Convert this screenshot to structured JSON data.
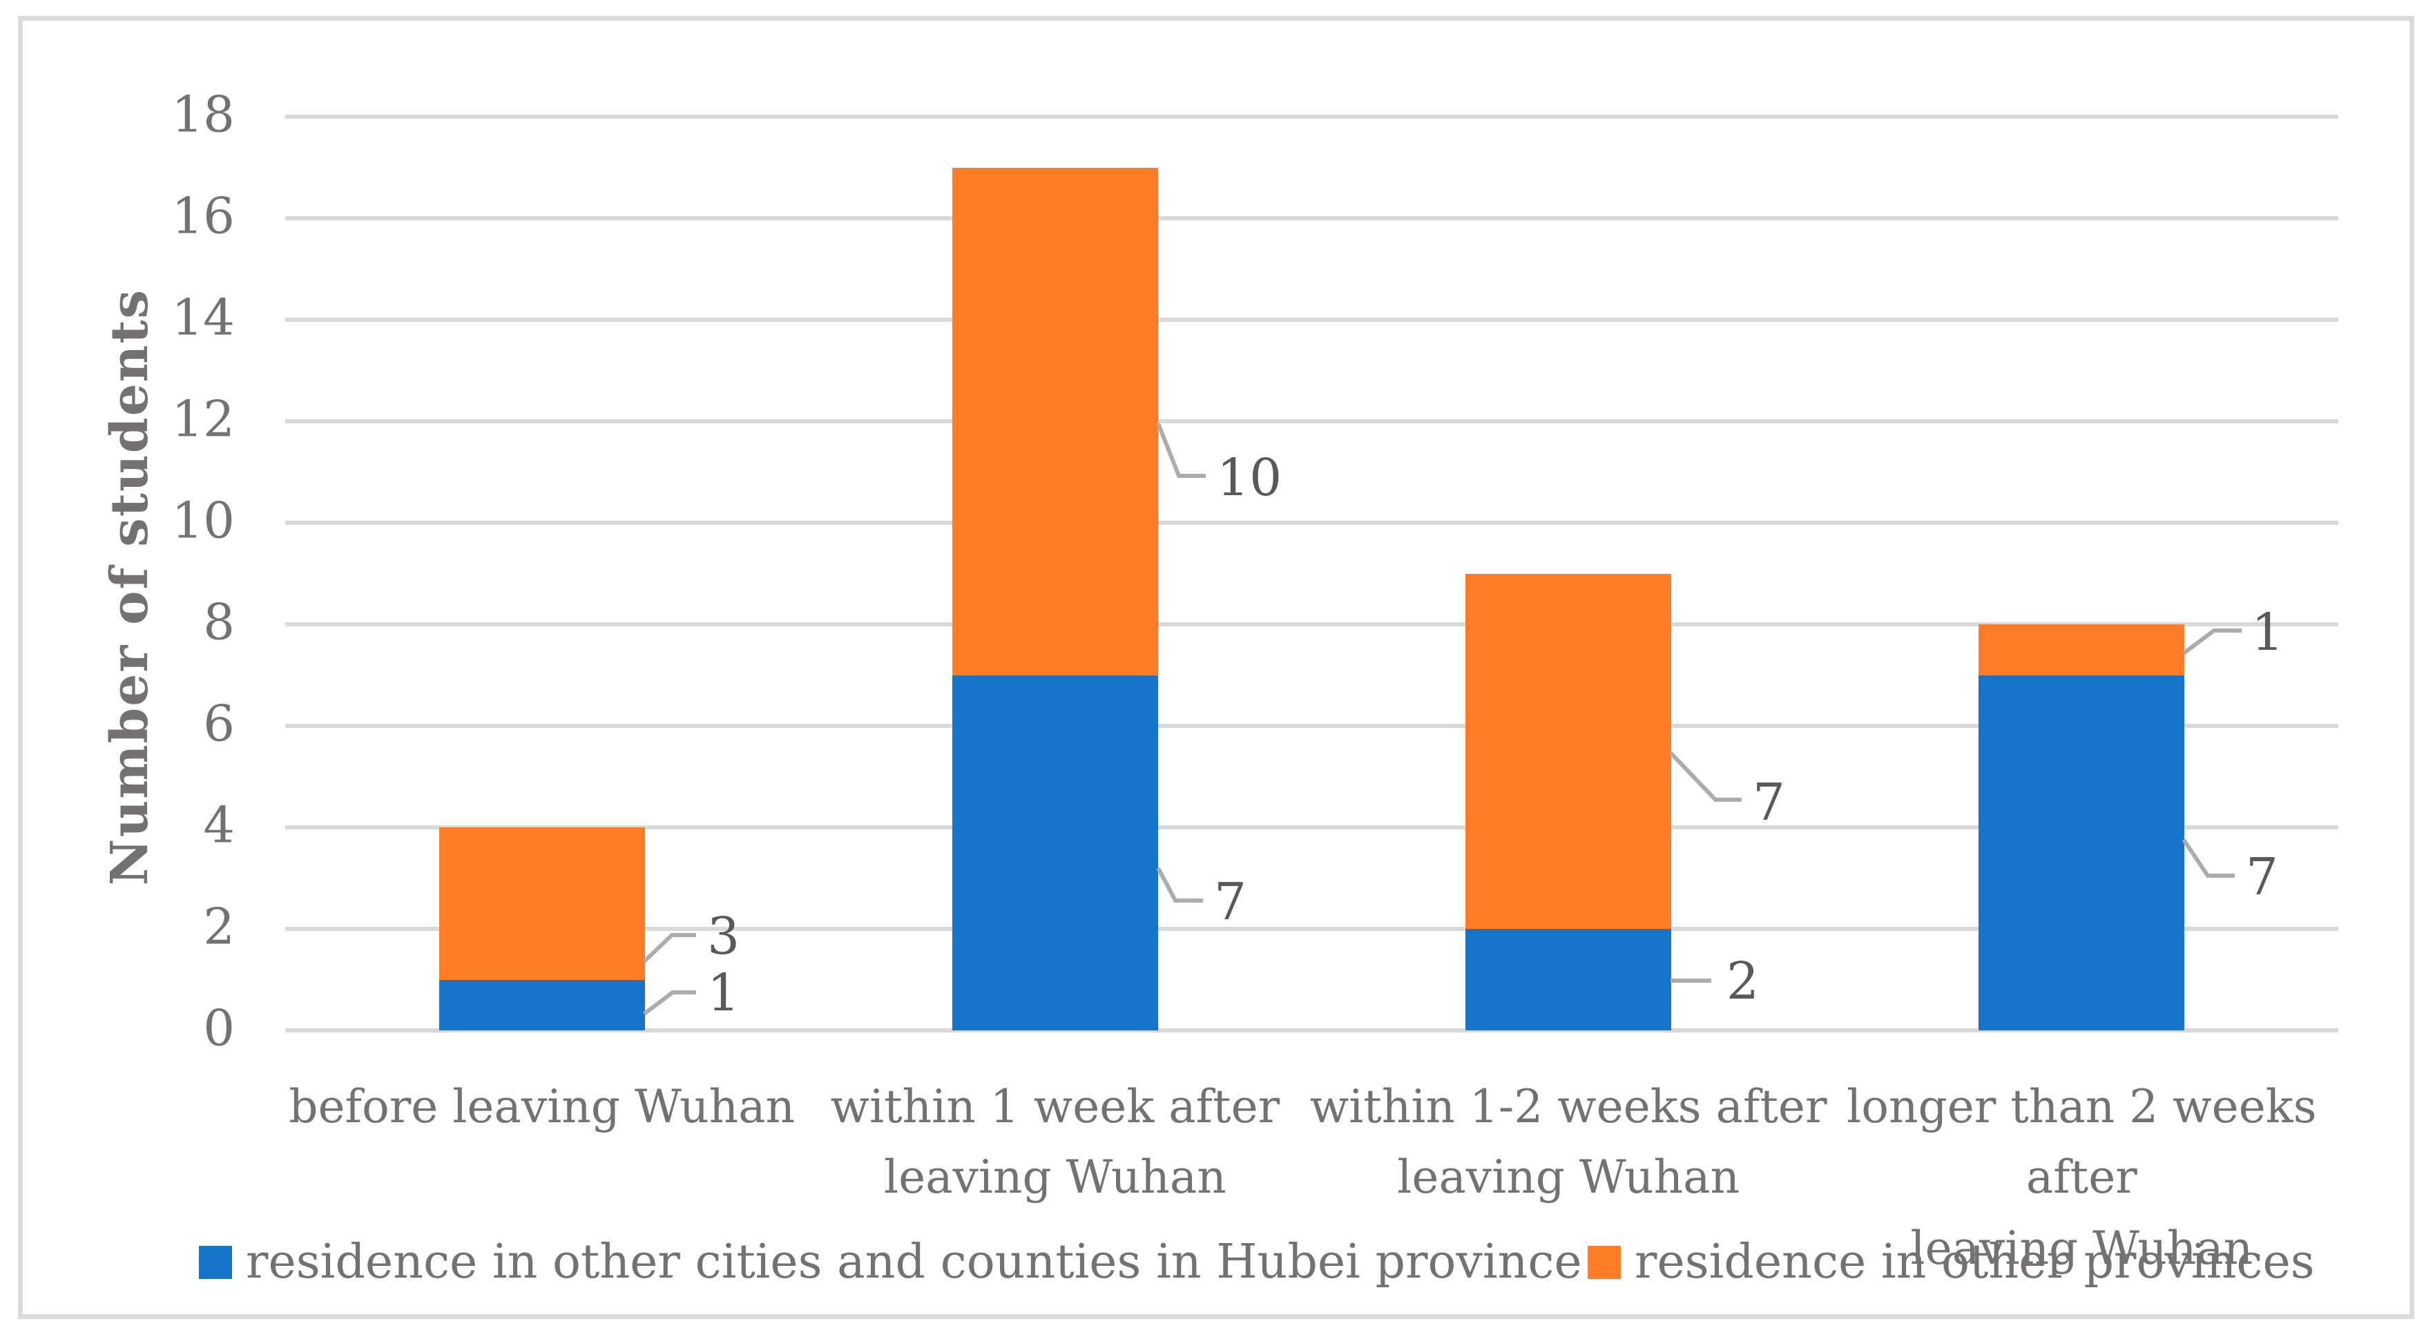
{
  "figure": {
    "background": "#ffffff",
    "border_color": "#dbdbdb"
  },
  "chart_data": {
    "type": "bar",
    "stacked": true,
    "title": "",
    "xlabel": "",
    "ylabel": "Number of students",
    "ylim": [
      0,
      18
    ],
    "ytick_step": 2,
    "yticks": [
      0,
      2,
      4,
      6,
      8,
      10,
      12,
      14,
      16,
      18
    ],
    "grid": "horizontal",
    "gridline_color": "#d9d9d9",
    "legend_position": "bottom",
    "text_color": "#767171",
    "data_label_color": "#595959",
    "leader_line_color": "#acacac",
    "categories": [
      "before leaving Wuhan",
      "within 1 week after\nleaving Wuhan",
      "within 1-2 weeks after\nleaving Wuhan",
      "longer than 2 weeks after\nleaving Wuhan"
    ],
    "series": [
      {
        "name": "residence in other cities and counties in Hubei province",
        "color": "#1874c9",
        "values": [
          1,
          7,
          2,
          7
        ]
      },
      {
        "name": "residence in other provinces",
        "color": "#fc7d26",
        "values": [
          3,
          10,
          7,
          1
        ]
      }
    ],
    "data_labels": true
  }
}
